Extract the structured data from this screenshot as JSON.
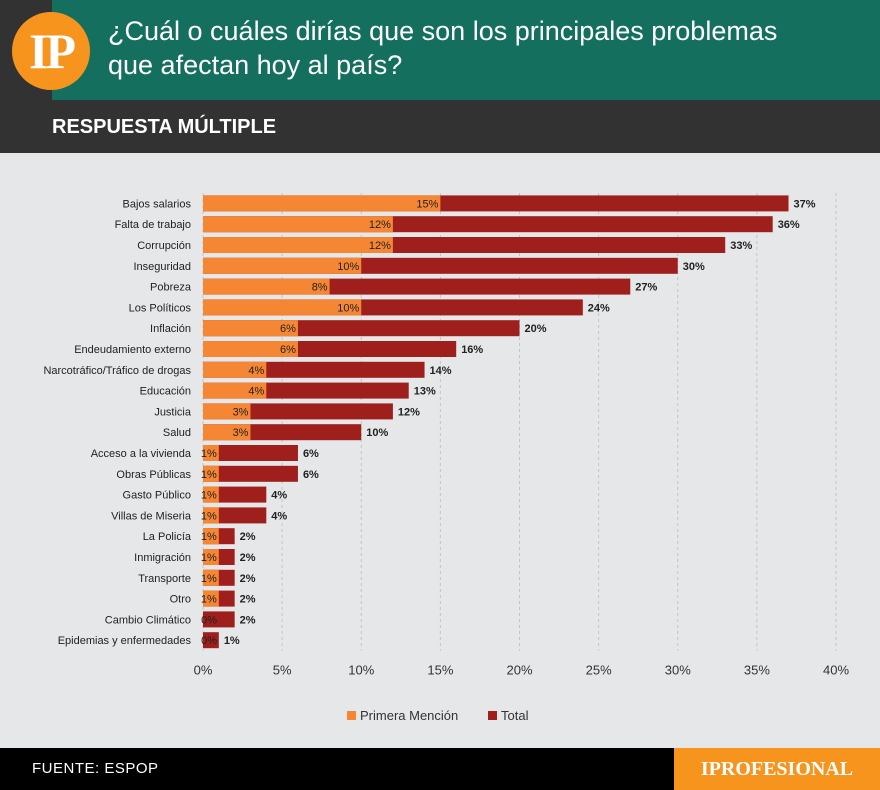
{
  "header": {
    "logo": "IP",
    "question_line1": "¿Cuál o cuáles dirías que son los principales problemas",
    "question_line2": "que afectan hoy al país?",
    "subtitle": "RESPUESTA MÚLTIPLE"
  },
  "footer": {
    "source": "FUENTE: ESPOP",
    "brand": "IPROFESIONAL"
  },
  "colors": {
    "primera": "#f58634",
    "total": "#9e1f1b",
    "header_green": "#156f5e",
    "header_dark": "#333232",
    "accent": "#f7941d"
  },
  "chart_data": {
    "type": "bar",
    "orientation": "horizontal",
    "categories": [
      "Bajos salarios",
      "Falta de trabajo",
      "Corrupción",
      "Inseguridad",
      "Pobreza",
      "Los Políticos",
      "Inflación",
      "Endeudamiento externo",
      "Narcotráfico/Tráfico de drogas",
      "Educación",
      "Justicia",
      "Salud",
      "Acceso a la vivienda",
      "Obras Públicas",
      "Gasto Público",
      "Villas de Miseria",
      "La Policía",
      "Inmigración",
      "Transporte",
      "Otro",
      "Cambio Climático",
      "Epidemias y enfermedades"
    ],
    "series": [
      {
        "name": "Primera Mención",
        "values": [
          15,
          12,
          12,
          10,
          8,
          10,
          6,
          6,
          4,
          4,
          3,
          3,
          1,
          1,
          1,
          1,
          1,
          1,
          1,
          1,
          0,
          0
        ],
        "labels": [
          "15%",
          "12%",
          "12%",
          "10%",
          "8%",
          "10%",
          "6%",
          "6%",
          "4%",
          "4%",
          "3%",
          "3%",
          "1%",
          "1%",
          "1%",
          "1%",
          "1%",
          "1%",
          "1%",
          "1%",
          "0%",
          "0%"
        ]
      },
      {
        "name": "Total",
        "values": [
          37,
          36,
          33,
          30,
          27,
          24,
          20,
          16,
          14,
          13,
          12,
          10,
          6,
          6,
          4,
          4,
          2,
          2,
          2,
          2,
          2,
          1
        ],
        "labels": [
          "37%",
          "36%",
          "33%",
          "30%",
          "27%",
          "24%",
          "20%",
          "16%",
          "14%",
          "13%",
          "12%",
          "10%",
          "6%",
          "6%",
          "4%",
          "4%",
          "2%",
          "2%",
          "2%",
          "2%",
          "2%",
          "1%"
        ]
      }
    ],
    "xlim": [
      0,
      40
    ],
    "xticks": [
      "0%",
      "5%",
      "10%",
      "15%",
      "20%",
      "25%",
      "30%",
      "35%",
      "40%"
    ],
    "grid": true,
    "legend": "bottom"
  }
}
